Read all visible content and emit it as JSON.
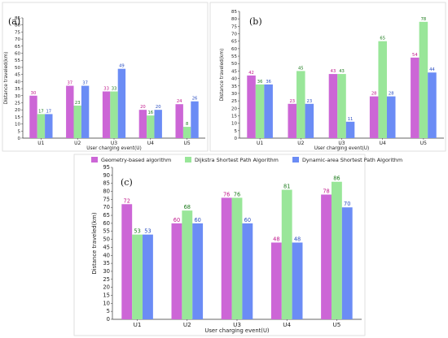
{
  "colors": {
    "geometry": "#cc66d6",
    "dijkstra": "#99e699",
    "dynamic": "#6b8cf5",
    "label_geometry": "#c0178a",
    "label_dijkstra": "#1a7a1a",
    "label_dynamic": "#2a4ec0"
  },
  "legend": {
    "items": [
      "Geometry-based algorithm",
      "Dijkstra Shortest Path Algorithm",
      "Dynamic-area Shortest Path Algorithm"
    ]
  },
  "chart_data": [
    {
      "panel": "(a)",
      "type": "bar",
      "categories": [
        "U1",
        "U2",
        "U3",
        "U4",
        "U5"
      ],
      "series": [
        {
          "name": "Geometry-based algorithm",
          "values": [
            30,
            37,
            33,
            20,
            24
          ]
        },
        {
          "name": "Dijkstra Shortest Path Algorithm",
          "values": [
            17,
            23,
            33,
            16,
            8
          ]
        },
        {
          "name": "Dynamic-area Shortest Path Algorithm",
          "values": [
            17,
            37,
            49,
            20,
            26
          ]
        }
      ],
      "xlabel": "User charging event(U)",
      "ylabel": "Distance traveled(km)",
      "ylim": [
        0,
        85
      ],
      "yticks": [
        0,
        5,
        10,
        15,
        20,
        25,
        30,
        35,
        40,
        45,
        50,
        55,
        60,
        65,
        70,
        75,
        80,
        85
      ]
    },
    {
      "panel": "(b)",
      "type": "bar",
      "categories": [
        "U1",
        "U2",
        "U3",
        "U4",
        "U5"
      ],
      "series": [
        {
          "name": "Geometry-based algorithm",
          "values": [
            42,
            23,
            43,
            28,
            54
          ]
        },
        {
          "name": "Dijkstra Shortest Path Algorithm",
          "values": [
            36,
            45,
            43,
            65,
            78
          ]
        },
        {
          "name": "Dynamic-area Shortest Path Algorithm",
          "values": [
            36,
            23,
            11,
            28,
            44
          ]
        }
      ],
      "xlabel": "User charging event(U)",
      "ylabel": "Distance traveled(km)",
      "ylim": [
        0,
        85
      ],
      "yticks": [
        0,
        5,
        10,
        15,
        20,
        25,
        30,
        35,
        40,
        45,
        50,
        55,
        60,
        65,
        70,
        75,
        80,
        85
      ]
    },
    {
      "panel": "(c)",
      "type": "bar",
      "categories": [
        "U1",
        "U2",
        "U3",
        "U4",
        "U5"
      ],
      "series": [
        {
          "name": "Geometry-based algorithm",
          "values": [
            72,
            60,
            76,
            48,
            78
          ]
        },
        {
          "name": "Dijkstra Shortest Path Algorithm",
          "values": [
            53,
            68,
            76,
            81,
            86
          ]
        },
        {
          "name": "Dynamic-area Shortest Path Algorithm",
          "values": [
            53,
            60,
            60,
            48,
            70
          ]
        }
      ],
      "xlabel": "User charging event(U)",
      "ylabel": "Distance traveled(km)",
      "ylim": [
        0,
        95
      ],
      "yticks": [
        0,
        5,
        10,
        15,
        20,
        25,
        30,
        35,
        40,
        45,
        50,
        55,
        60,
        65,
        70,
        75,
        80,
        85,
        90,
        95
      ]
    }
  ]
}
